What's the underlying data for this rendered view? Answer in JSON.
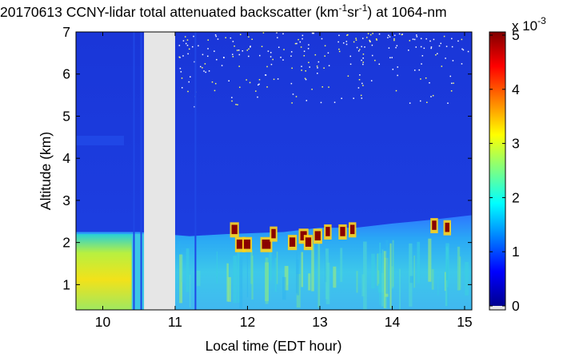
{
  "chart_data": {
    "type": "heatmap",
    "title_prefix": "20170613 CCNY-lidar total attenuated backscatter (km",
    "title_exp1": "-1",
    "title_mid": "sr",
    "title_exp2": "-1",
    "title_suffix": ") at 1064-nm",
    "xlabel": "Local time (EDT hour)",
    "ylabel": "Altitude (km)",
    "xlim": [
      9.63,
      15.1
    ],
    "ylim": [
      0.4,
      7
    ],
    "x_ticks": [
      10,
      11,
      12,
      13,
      14,
      15
    ],
    "y_ticks": [
      1,
      2,
      3,
      4,
      5,
      6,
      7
    ],
    "colorbar": {
      "range": [
        0,
        5
      ],
      "ticks": [
        0,
        1,
        2,
        3,
        4,
        5
      ],
      "multiplier_base": "x 10",
      "multiplier_exp": "-3",
      "colormap": "jet"
    },
    "data_gap": [
      10.57,
      11.0
    ],
    "dropouts": [
      10.42,
      10.52,
      11.27
    ],
    "boundary_layer_top": [
      {
        "x": 9.63,
        "y": 2.25
      },
      {
        "x": 10.5,
        "y": 2.25
      },
      {
        "x": 11.2,
        "y": 2.15
      },
      {
        "x": 11.7,
        "y": 2.2
      },
      {
        "x": 12.5,
        "y": 2.25
      },
      {
        "x": 13.0,
        "y": 2.35
      },
      {
        "x": 13.5,
        "y": 2.35
      },
      {
        "x": 14.0,
        "y": 2.45
      },
      {
        "x": 14.6,
        "y": 2.55
      },
      {
        "x": 15.1,
        "y": 2.65
      }
    ],
    "cloud_cells": [
      {
        "x": 11.78,
        "y": 2.2,
        "w": 0.08
      },
      {
        "x": 11.85,
        "y": 1.85,
        "w": 0.1
      },
      {
        "x": 11.95,
        "y": 1.85,
        "w": 0.09
      },
      {
        "x": 12.2,
        "y": 1.85,
        "w": 0.12
      },
      {
        "x": 12.33,
        "y": 2.1,
        "w": 0.06
      },
      {
        "x": 12.58,
        "y": 1.9,
        "w": 0.08
      },
      {
        "x": 12.73,
        "y": 2.05,
        "w": 0.09
      },
      {
        "x": 12.8,
        "y": 1.9,
        "w": 0.08
      },
      {
        "x": 12.93,
        "y": 2.05,
        "w": 0.08
      },
      {
        "x": 13.08,
        "y": 2.15,
        "w": 0.06
      },
      {
        "x": 13.28,
        "y": 2.15,
        "w": 0.07
      },
      {
        "x": 13.42,
        "y": 2.2,
        "w": 0.06
      },
      {
        "x": 14.55,
        "y": 2.3,
        "w": 0.06
      },
      {
        "x": 14.73,
        "y": 2.25,
        "w": 0.06
      }
    ]
  }
}
